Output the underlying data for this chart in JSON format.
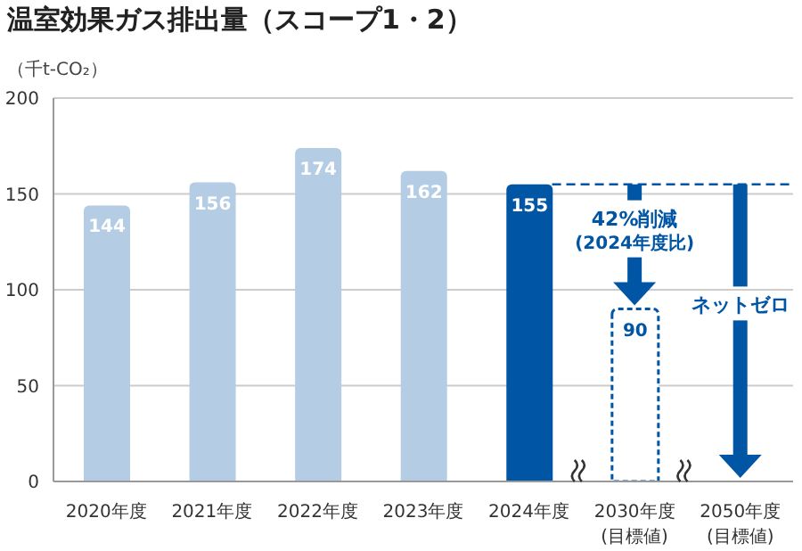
{
  "chart_data": {
    "type": "bar",
    "title": "温室効果ガス排出量（スコープ1・2）",
    "ylabel": "（千t-CO₂）",
    "categories": [
      "2020年度",
      "2021年度",
      "2022年度",
      "2023年度",
      "2024年度",
      "2030年度\n(目標値)",
      "2050年度\n(目標値)"
    ],
    "values": [
      144,
      156,
      174,
      162,
      155,
      90,
      0
    ],
    "colors": [
      "#b4cde4",
      "#b4cde4",
      "#b4cde4",
      "#b4cde4",
      "#0055a5",
      "#ffffff",
      "#0055a5"
    ],
    "value_labels": [
      "144",
      "156",
      "174",
      "162",
      "155",
      "90",
      null
    ],
    "ylim": [
      0,
      200
    ],
    "yticks": [
      0,
      50,
      100,
      150,
      200
    ],
    "grid": "y",
    "ref_lines": [
      {
        "axis": "y",
        "value": 155,
        "color": "#0055a5",
        "line_style": "dashed"
      }
    ],
    "annotations": [
      "42%削減\n(2024年度比)",
      "ネットゼロ"
    ]
  }
}
